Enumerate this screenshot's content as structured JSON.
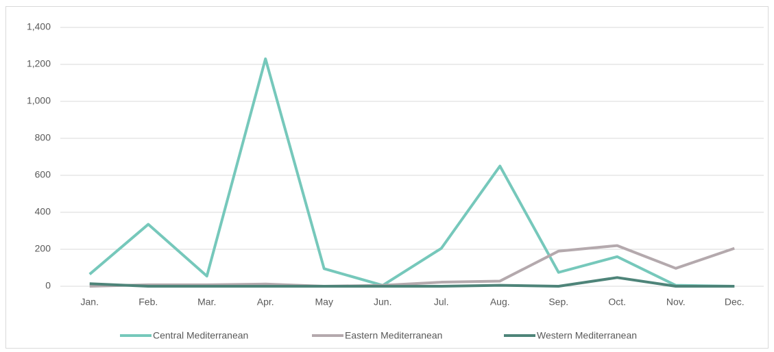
{
  "chart_data": {
    "type": "line",
    "categories": [
      "Jan.",
      "Feb.",
      "Mar.",
      "Apr.",
      "May",
      "Jun.",
      "Jul.",
      "Aug.",
      "Sep.",
      "Oct.",
      "Nov.",
      "Dec."
    ],
    "series": [
      {
        "name": "Central Mediterranean",
        "color": "#76c8bb",
        "values": [
          65,
          335,
          55,
          1230,
          95,
          5,
          205,
          650,
          75,
          160,
          5,
          0
        ]
      },
      {
        "name": "Eastern Mediterranean",
        "color": "#b4a9ad",
        "values": [
          0,
          8,
          8,
          12,
          0,
          5,
          22,
          28,
          190,
          220,
          97,
          205
        ]
      },
      {
        "name": "Western Mediterranean",
        "color": "#4e8479",
        "values": [
          14,
          0,
          0,
          0,
          0,
          0,
          0,
          5,
          0,
          47,
          0,
          0
        ]
      }
    ],
    "ylim": [
      0,
      1400
    ],
    "yticks": [
      0,
      200,
      400,
      600,
      800,
      {
        "value": 1000,
        "label": "1,000"
      },
      {
        "value": 1200,
        "label": "1,200"
      },
      {
        "value": 1400,
        "label": "1,400"
      }
    ],
    "grid": true,
    "legend": "bottom"
  }
}
